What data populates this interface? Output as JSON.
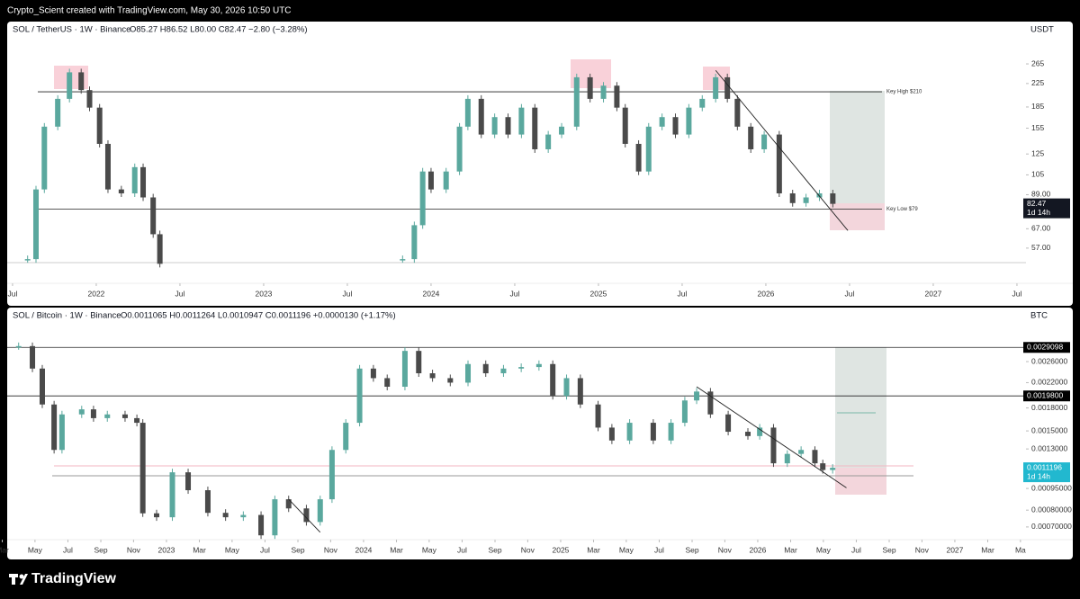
{
  "header": "Crypto_Scient created with TradingView.com, May 30, 2026 10:50 UTC",
  "footer": "TradingView",
  "chart_data": [
    {
      "type": "candlestick",
      "title": "SOL / TetherUS · 1W · Binance",
      "ohlc": "O85.27 H86.52 L80.00 C82.47 −2.80 (−3.28%)",
      "currency": "USDT",
      "log_scale": true,
      "up_color": "#5aa89e",
      "down_color": "#4a4a4a",
      "x": [
        2021.59,
        2021.64,
        2021.69,
        2021.77,
        2021.84,
        2021.91,
        2021.96,
        2022.02,
        2022.07,
        2022.15,
        2022.23,
        2022.28,
        2022.34,
        2022.38,
        2023.1,
        2023.83,
        2023.9,
        2023.95,
        2024.0,
        2024.09,
        2024.17,
        2024.22,
        2024.3,
        2024.38,
        2024.46,
        2024.54,
        2024.62,
        2024.7,
        2024.78,
        2024.87,
        2024.95,
        2025.03,
        2025.11,
        2025.16,
        2025.24,
        2025.3,
        2025.38,
        2025.46,
        2025.54,
        2025.62,
        2025.7,
        2025.77,
        2025.83,
        2025.91,
        2025.99,
        2026.08,
        2026.16,
        2026.24,
        2026.32,
        2026.4
      ],
      "values": [
        52,
        93,
        157,
        198,
        247,
        213,
        184,
        136,
        93,
        90,
        112,
        87,
        64,
        50,
        null,
        52,
        69,
        108,
        93,
        108,
        157,
        198,
        147,
        170,
        147,
        184,
        130,
        147,
        157,
        237,
        198,
        221,
        184,
        136,
        108,
        157,
        170,
        147,
        184,
        198,
        237,
        198,
        157,
        130,
        147,
        90,
        83,
        87,
        90,
        82.47
      ],
      "xlim": [
        2021.468,
        2027.554
      ],
      "ylim": [
        42.5,
        366
      ],
      "xticks": [
        {
          "value": 2021.5,
          "label": "Jul"
        },
        {
          "value": 2022,
          "label": "2022"
        },
        {
          "value": 2022.5,
          "label": "Jul"
        },
        {
          "value": 2023,
          "label": "2023"
        },
        {
          "value": 2023.5,
          "label": "Jul"
        },
        {
          "value": 2024,
          "label": "2024"
        },
        {
          "value": 2024.5,
          "label": "Jul"
        },
        {
          "value": 2025,
          "label": "2025"
        },
        {
          "value": 2025.5,
          "label": "Jul"
        },
        {
          "value": 2026,
          "label": "2026"
        },
        {
          "value": 2026.5,
          "label": "Jul"
        },
        {
          "value": 2027,
          "label": "2027"
        },
        {
          "value": 2027.5,
          "label": "Jul"
        }
      ],
      "yticks": [
        265,
        225,
        185,
        155,
        125,
        105,
        {
          "value": 89,
          "label": "89.00"
        },
        {
          "value": 67,
          "label": "67.00"
        },
        {
          "value": 57,
          "label": "57.00"
        }
      ],
      "levels": [
        {
          "value": 210,
          "label": "Key High $210"
        },
        {
          "value": 79,
          "label": "Key Low $79"
        }
      ],
      "trendlines": [
        {
          "x": [
            2025.7,
            2026.49
          ],
          "y": [
            251,
            66
          ]
        }
      ],
      "last_price": 82.47,
      "countdown": "1d 14h",
      "last_color": "#131722"
    },
    {
      "type": "candlestick",
      "title": "SOL / Bitcoin · 1W · Binance",
      "ohlc": "O0.0011065 H0.0011264 L0.0010947 C0.0011196 +0.0000130 (+1.17%)",
      "currency": "BTC",
      "log_scale": true,
      "up_color": "#5aa89e",
      "down_color": "#4a4a4a",
      "x": [
        2022.25,
        2022.32,
        2022.37,
        2022.43,
        2022.47,
        2022.57,
        2022.63,
        2022.7,
        2022.79,
        2022.85,
        2022.88,
        2022.95,
        2023.03,
        2023.11,
        2023.21,
        2023.3,
        2023.39,
        2023.48,
        2023.55,
        2023.62,
        2023.71,
        2023.78,
        2023.84,
        2023.91,
        2023.98,
        2024.05,
        2024.12,
        2024.21,
        2024.28,
        2024.35,
        2024.44,
        2024.53,
        2024.62,
        2024.71,
        2024.8,
        2024.89,
        2024.96,
        2025.03,
        2025.1,
        2025.19,
        2025.26,
        2025.35,
        2025.47,
        2025.56,
        2025.63,
        2025.69,
        2025.76,
        2025.85,
        2025.95,
        2026.01,
        2026.08,
        2026.15,
        2026.22,
        2026.29,
        2026.33,
        2026.38
      ],
      "values": [
        0.00294,
        0.00246,
        0.00185,
        0.00129,
        0.00171,
        0.00178,
        0.00166,
        0.00171,
        0.00166,
        0.0016,
        0.00078,
        0.000756,
        0.00108,
        0.000937,
        0.000783,
        0.000756,
        0.00077,
        0.000655,
        0.000872,
        0.000811,
        0.000728,
        0.000872,
        0.00129,
        0.0016,
        0.00246,
        0.00228,
        0.00213,
        0.00283,
        0.00237,
        0.00228,
        0.0022,
        0.00255,
        0.00237,
        0.00246,
        0.00249,
        0.00255,
        0.00198,
        0.00228,
        0.00185,
        0.00154,
        0.00139,
        0.0016,
        0.00139,
        0.0016,
        0.00191,
        0.00205,
        0.00171,
        0.00149,
        0.00144,
        0.00154,
        0.00116,
        0.00125,
        0.00129,
        0.00116,
        0.0011,
        0.0011196
      ],
      "xlim": [
        2022.192,
        2027.361
      ],
      "ylim": [
        0.000633,
        0.00346
      ],
      "xticks": [
        {
          "value": 2022.167,
          "label": "Mar"
        },
        {
          "value": 2022.333,
          "label": "May"
        },
        {
          "value": 2022.5,
          "label": "Jul"
        },
        {
          "value": 2022.667,
          "label": "Sep"
        },
        {
          "value": 2022.833,
          "label": "Nov"
        },
        {
          "value": 2023,
          "label": "2023"
        },
        {
          "value": 2023.167,
          "label": "Mar"
        },
        {
          "value": 2023.333,
          "label": "May"
        },
        {
          "value": 2023.5,
          "label": "Jul"
        },
        {
          "value": 2023.667,
          "label": "Sep"
        },
        {
          "value": 2023.833,
          "label": "Nov"
        },
        {
          "value": 2024,
          "label": "2024"
        },
        {
          "value": 2024.167,
          "label": "Mar"
        },
        {
          "value": 2024.333,
          "label": "May"
        },
        {
          "value": 2024.5,
          "label": "Jul"
        },
        {
          "value": 2024.667,
          "label": "Sep"
        },
        {
          "value": 2024.833,
          "label": "Nov"
        },
        {
          "value": 2025,
          "label": "2025"
        },
        {
          "value": 2025.167,
          "label": "Mar"
        },
        {
          "value": 2025.333,
          "label": "May"
        },
        {
          "value": 2025.5,
          "label": "Jul"
        },
        {
          "value": 2025.667,
          "label": "Sep"
        },
        {
          "value": 2025.833,
          "label": "Nov"
        },
        {
          "value": 2026,
          "label": "2026"
        },
        {
          "value": 2026.167,
          "label": "Mar"
        },
        {
          "value": 2026.333,
          "label": "May"
        },
        {
          "value": 2026.5,
          "label": "Jul"
        },
        {
          "value": 2026.667,
          "label": "Sep"
        },
        {
          "value": 2026.833,
          "label": "Nov"
        },
        {
          "value": 2027,
          "label": "2027"
        },
        {
          "value": 2027.167,
          "label": "Mar"
        },
        {
          "value": 2027.333,
          "label": "Ma"
        }
      ],
      "yticks": [
        {
          "value": 0.0026,
          "label": "0.0026000"
        },
        {
          "value": 0.0022,
          "label": "0.0022000"
        },
        {
          "value": 0.0018,
          "label": "0.0018000"
        },
        {
          "value": 0.0015,
          "label": "0.0015000"
        },
        {
          "value": 0.0013,
          "label": "0.0013000"
        },
        {
          "value": 0.00095,
          "label": "0.00095000"
        },
        {
          "value": 0.0008,
          "label": "0.00080000"
        },
        {
          "value": 0.0007,
          "label": "0.00070000"
        }
      ],
      "levels": [
        {
          "value": 0.0029098,
          "label": "0.0029098"
        },
        {
          "value": 0.00198,
          "label": "0.0019800"
        }
      ],
      "trendlines": [
        {
          "x": [
            2025.69,
            2026.45
          ],
          "y": [
            0.00213,
            0.000955
          ]
        },
        {
          "x": [
            2023.62,
            2023.78
          ],
          "y": [
            0.000872,
            0.000671
          ]
        }
      ],
      "last_price": 0.0011196,
      "countdown": "1d 14h",
      "last_color": "#22b8cf"
    }
  ]
}
